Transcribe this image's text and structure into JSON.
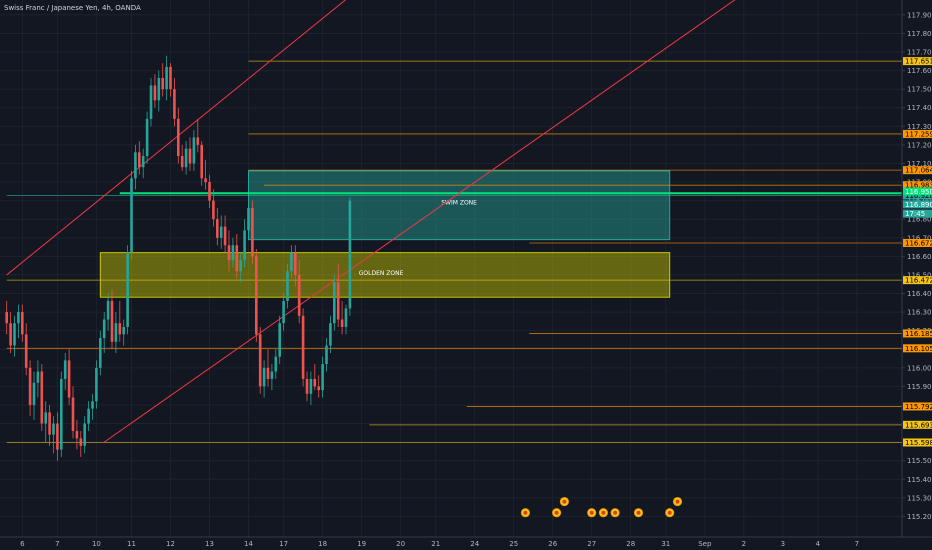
{
  "chart_data": {
    "type": "candlestick",
    "title": "Swiss Franc / Japanese Yen, 4h, OANDA",
    "ylim": [
      115.1,
      117.98
    ],
    "yticks": [
      115.2,
      115.3,
      115.4,
      115.5,
      115.6,
      115.7,
      115.8,
      115.9,
      116.0,
      116.1,
      116.2,
      116.3,
      116.4,
      116.5,
      116.6,
      116.7,
      116.8,
      116.9,
      117.0,
      117.1,
      117.2,
      117.3,
      117.4,
      117.5,
      117.6,
      117.7,
      117.8,
      117.9
    ],
    "ytick_labels": [
      "115.200",
      "115.300",
      "115.400",
      "115.500",
      "115.600",
      "115.700",
      "115.800",
      "115.900",
      "116.000",
      "116.100",
      "116.200",
      "116.300",
      "116.400",
      "116.500",
      "116.600",
      "116.700",
      "116.800",
      "116.900",
      "117.000",
      "117.100",
      "117.200",
      "117.300",
      "117.400",
      "117.500",
      "117.600",
      "117.700",
      "117.800",
      "117.900"
    ],
    "xticks": [
      {
        "label": "6",
        "bar": 4
      },
      {
        "label": "7",
        "bar": 13
      },
      {
        "label": "10",
        "bar": 23
      },
      {
        "label": "11",
        "bar": 32
      },
      {
        "label": "12",
        "bar": 42
      },
      {
        "label": "13",
        "bar": 52
      },
      {
        "label": "14",
        "bar": 62
      },
      {
        "label": "17",
        "bar": 71
      },
      {
        "label": "18",
        "bar": 81
      },
      {
        "label": "19",
        "bar": 91
      },
      {
        "label": "20",
        "bar": 101
      },
      {
        "label": "21",
        "bar": 110
      },
      {
        "label": "24",
        "bar": 120
      },
      {
        "label": "25",
        "bar": 130
      },
      {
        "label": "26",
        "bar": 140
      },
      {
        "label": "27",
        "bar": 150
      },
      {
        "label": "28",
        "bar": 160
      },
      {
        "label": "31",
        "bar": 169
      },
      {
        "label": "Sep",
        "bar": 179
      },
      {
        "label": "2",
        "bar": 189
      },
      {
        "label": "3",
        "bar": 199
      },
      {
        "label": "4",
        "bar": 208
      },
      {
        "label": "7",
        "bar": 218
      }
    ],
    "candles": [
      [
        116.3,
        116.36,
        116.18,
        116.24
      ],
      [
        116.24,
        116.3,
        116.08,
        116.12
      ],
      [
        116.12,
        116.28,
        116.06,
        116.24
      ],
      [
        116.24,
        116.34,
        116.16,
        116.3
      ],
      [
        116.3,
        116.34,
        116.14,
        116.18
      ],
      [
        116.18,
        116.24,
        115.96,
        116.0
      ],
      [
        116.0,
        116.04,
        115.74,
        115.8
      ],
      [
        115.8,
        115.98,
        115.72,
        115.92
      ],
      [
        115.92,
        116.04,
        115.84,
        115.98
      ],
      [
        115.98,
        116.02,
        115.66,
        115.7
      ],
      [
        115.7,
        115.82,
        115.6,
        115.76
      ],
      [
        115.76,
        115.8,
        115.58,
        115.64
      ],
      [
        115.64,
        115.74,
        115.54,
        115.7
      ],
      [
        115.7,
        115.76,
        115.5,
        115.56
      ],
      [
        115.56,
        115.98,
        115.52,
        115.94
      ],
      [
        115.94,
        116.08,
        115.88,
        116.04
      ],
      [
        116.04,
        116.1,
        115.8,
        115.84
      ],
      [
        115.84,
        115.9,
        115.62,
        115.66
      ],
      [
        115.66,
        115.72,
        115.56,
        115.62
      ],
      [
        115.62,
        115.66,
        115.52,
        115.58
      ],
      [
        115.58,
        115.74,
        115.54,
        115.7
      ],
      [
        115.7,
        115.82,
        115.66,
        115.78
      ],
      [
        115.78,
        115.86,
        115.72,
        115.82
      ],
      [
        115.82,
        116.04,
        115.78,
        116.0
      ],
      [
        116.0,
        116.2,
        115.96,
        116.16
      ],
      [
        116.16,
        116.3,
        116.08,
        116.26
      ],
      [
        116.26,
        116.4,
        116.2,
        116.36
      ],
      [
        116.36,
        116.42,
        116.1,
        116.14
      ],
      [
        116.14,
        116.3,
        116.08,
        116.24
      ],
      [
        116.24,
        116.36,
        116.14,
        116.18
      ],
      [
        116.18,
        116.26,
        116.12,
        116.22
      ],
      [
        116.22,
        116.66,
        116.18,
        116.62
      ],
      [
        116.62,
        117.06,
        116.58,
        117.02
      ],
      [
        117.02,
        117.2,
        116.96,
        117.16
      ],
      [
        117.16,
        117.22,
        117.04,
        117.08
      ],
      [
        117.08,
        117.18,
        117.02,
        117.14
      ],
      [
        117.14,
        117.38,
        117.1,
        117.34
      ],
      [
        117.34,
        117.56,
        117.3,
        117.52
      ],
      [
        117.52,
        117.58,
        117.4,
        117.44
      ],
      [
        117.44,
        117.6,
        117.38,
        117.56
      ],
      [
        117.56,
        117.64,
        117.46,
        117.5
      ],
      [
        117.5,
        117.68,
        117.44,
        117.62
      ],
      [
        117.62,
        117.64,
        117.46,
        117.5
      ],
      [
        117.5,
        117.56,
        117.3,
        117.34
      ],
      [
        117.34,
        117.4,
        117.1,
        117.14
      ],
      [
        117.14,
        117.2,
        117.06,
        117.08
      ],
      [
        117.08,
        117.22,
        117.04,
        117.18
      ],
      [
        117.18,
        117.24,
        117.06,
        117.1
      ],
      [
        117.1,
        117.28,
        117.06,
        117.24
      ],
      [
        117.24,
        117.34,
        117.16,
        117.2
      ],
      [
        117.2,
        117.22,
        116.98,
        117.02
      ],
      [
        117.02,
        117.12,
        116.96,
        117.0
      ],
      [
        117.0,
        117.04,
        116.86,
        116.9
      ],
      [
        116.9,
        116.96,
        116.76,
        116.8
      ],
      [
        116.8,
        116.86,
        116.66,
        116.7
      ],
      [
        116.7,
        116.82,
        116.64,
        116.76
      ],
      [
        116.76,
        116.82,
        116.62,
        116.66
      ],
      [
        116.66,
        116.74,
        116.52,
        116.58
      ],
      [
        116.58,
        116.7,
        116.54,
        116.66
      ],
      [
        116.66,
        116.72,
        116.48,
        116.52
      ],
      [
        116.52,
        116.62,
        116.46,
        116.58
      ],
      [
        116.58,
        116.8,
        116.54,
        116.74
      ],
      [
        116.74,
        116.9,
        116.7,
        116.86
      ],
      [
        116.86,
        116.9,
        116.56,
        116.6
      ],
      [
        116.6,
        116.64,
        116.14,
        116.18
      ],
      [
        116.18,
        116.22,
        115.86,
        115.9
      ],
      [
        115.9,
        116.04,
        115.84,
        116.0
      ],
      [
        116.0,
        116.1,
        115.9,
        115.94
      ],
      [
        115.94,
        116.02,
        115.88,
        115.98
      ],
      [
        115.98,
        116.1,
        115.94,
        116.06
      ],
      [
        116.06,
        116.28,
        116.02,
        116.24
      ],
      [
        116.24,
        116.4,
        116.2,
        116.36
      ],
      [
        116.36,
        116.56,
        116.32,
        116.52
      ],
      [
        116.52,
        116.66,
        116.48,
        116.62
      ],
      [
        116.62,
        116.66,
        116.44,
        116.5
      ],
      [
        116.5,
        116.58,
        116.24,
        116.28
      ],
      [
        116.28,
        116.32,
        115.9,
        115.94
      ],
      [
        115.94,
        115.98,
        115.82,
        115.86
      ],
      [
        115.86,
        115.98,
        115.8,
        115.94
      ],
      [
        115.94,
        116.02,
        115.88,
        115.9
      ],
      [
        115.9,
        115.96,
        115.84,
        115.88
      ],
      [
        115.88,
        116.06,
        115.84,
        116.02
      ],
      [
        116.02,
        116.16,
        115.98,
        116.12
      ],
      [
        116.12,
        116.28,
        116.08,
        116.24
      ],
      [
        116.24,
        116.5,
        116.2,
        116.46
      ],
      [
        116.46,
        116.56,
        116.22,
        116.26
      ],
      [
        116.26,
        116.36,
        116.18,
        116.22
      ],
      [
        116.22,
        116.34,
        116.18,
        116.32
      ],
      [
        116.32,
        116.92,
        116.28,
        116.9
      ]
    ],
    "horizontal_levels": [
      {
        "price": 117.651,
        "label": "117.651",
        "color": "#f5c518"
      },
      {
        "price": 117.259,
        "label": "117.259",
        "color": "#ff9800"
      },
      {
        "price": 117.064,
        "label": "117.064",
        "color": "#ff9800"
      },
      {
        "price": 116.983,
        "label": "116.983",
        "color": "#ff9800"
      },
      {
        "price": 116.928,
        "label": "116.928",
        "color": "#26a69a"
      },
      {
        "price": 116.672,
        "label": "116.672",
        "color": "#ff9800"
      },
      {
        "price": 116.472,
        "label": "116.472",
        "color": "#f5c518"
      },
      {
        "price": 116.185,
        "label": "116.185",
        "color": "#ff9800"
      },
      {
        "price": 116.105,
        "label": "116.105",
        "color": "#ff9800"
      },
      {
        "price": 115.792,
        "label": "115.792",
        "color": "#ff9800"
      },
      {
        "price": 115.693,
        "label": "115.693",
        "color": "#f5c518"
      },
      {
        "price": 115.598,
        "label": "115.598",
        "color": "#f5c518"
      }
    ],
    "price_badges": [
      {
        "price": 116.95,
        "label": "116.950",
        "color": "#00e676"
      },
      {
        "price": 116.88,
        "label": "116.890",
        "color": "#26a69a"
      },
      {
        "price": 116.83,
        "label": "17:45",
        "color": "#26a69a"
      }
    ],
    "zones": [
      {
        "name": "SWIM ZONE",
        "top": 117.06,
        "bottom": 116.69,
        "bar_start": 62,
        "bar_end": 170,
        "color": "#26a69a"
      },
      {
        "name": "GOLDEN ZONE",
        "top": 116.62,
        "bottom": 116.38,
        "bar_start": 24,
        "bar_end": 170,
        "color": "#c8c800"
      }
    ],
    "key_line": {
      "price": 116.94,
      "bar_start": 29,
      "color": "#00e676"
    },
    "channel_lines": [
      {
        "bar1": 25,
        "price1": 115.6,
        "bar2": 188,
        "price2": 118.0,
        "color": "#f23645"
      },
      {
        "bar1": 0,
        "price1": 116.5,
        "bar2": 88,
        "price2": 118.0,
        "color": "#f23645"
      }
    ],
    "event_markers": [
      {
        "bar": 133,
        "price": 115.22
      },
      {
        "bar": 141,
        "price": 115.22
      },
      {
        "bar": 143,
        "price": 115.28
      },
      {
        "bar": 150,
        "price": 115.22
      },
      {
        "bar": 153,
        "price": 115.22
      },
      {
        "bar": 156,
        "price": 115.22
      },
      {
        "bar": 162,
        "price": 115.22
      },
      {
        "bar": 170,
        "price": 115.22
      },
      {
        "bar": 172,
        "price": 115.28
      }
    ]
  },
  "colors": {
    "background": "#131722",
    "grid": "#1e222d",
    "up": "#26a69a",
    "down": "#ef5350"
  }
}
